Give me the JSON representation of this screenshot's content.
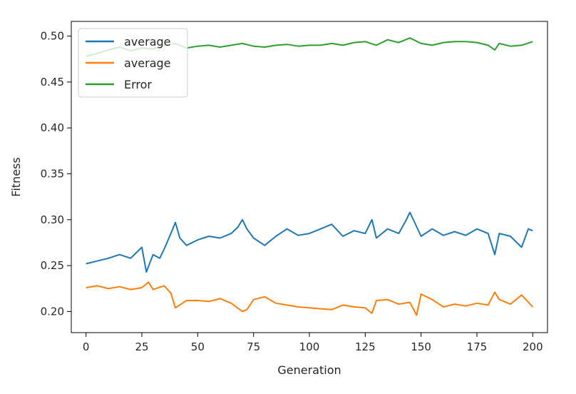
{
  "chart_data": {
    "type": "line",
    "title": "",
    "xlabel": "Generation",
    "ylabel": "Fitness",
    "xlim": [
      -6.6,
      206.6
    ],
    "ylim": [
      0.177,
      0.516
    ],
    "xticks": [
      0,
      25,
      50,
      75,
      100,
      125,
      150,
      175,
      200
    ],
    "xtick_labels": [
      "0",
      "25",
      "50",
      "75",
      "100",
      "125",
      "150",
      "175",
      "200"
    ],
    "yticks": [
      0.2,
      0.25,
      0.3,
      0.35,
      0.4,
      0.45,
      0.5
    ],
    "ytick_labels": [
      "0.20",
      "0.25",
      "0.30",
      "0.35",
      "0.40",
      "0.45",
      "0.50"
    ],
    "grid": false,
    "legend_position": "upper-left",
    "series": [
      {
        "name": "average",
        "color": "#1f77b4",
        "x": [
          0,
          5,
          10,
          15,
          20,
          25,
          27,
          30,
          33,
          35,
          38,
          40,
          42,
          45,
          50,
          55,
          60,
          65,
          68,
          70,
          72,
          75,
          80,
          85,
          90,
          95,
          100,
          105,
          110,
          115,
          120,
          125,
          128,
          130,
          135,
          140,
          143,
          145,
          150,
          155,
          160,
          165,
          170,
          175,
          180,
          183,
          185,
          190,
          195,
          198,
          200
        ],
        "y": [
          0.252,
          0.255,
          0.258,
          0.262,
          0.258,
          0.27,
          0.243,
          0.262,
          0.258,
          0.268,
          0.285,
          0.297,
          0.28,
          0.272,
          0.278,
          0.282,
          0.28,
          0.285,
          0.292,
          0.3,
          0.29,
          0.28,
          0.272,
          0.282,
          0.29,
          0.283,
          0.285,
          0.29,
          0.295,
          0.282,
          0.288,
          0.285,
          0.3,
          0.28,
          0.29,
          0.285,
          0.298,
          0.308,
          0.282,
          0.29,
          0.283,
          0.287,
          0.283,
          0.29,
          0.285,
          0.262,
          0.285,
          0.282,
          0.27,
          0.29,
          0.288
        ]
      },
      {
        "name": "average",
        "color": "#ff7f0e",
        "x": [
          0,
          5,
          10,
          15,
          20,
          25,
          28,
          30,
          35,
          38,
          40,
          45,
          50,
          55,
          60,
          65,
          70,
          72,
          75,
          80,
          85,
          90,
          95,
          100,
          105,
          110,
          115,
          120,
          125,
          128,
          130,
          135,
          140,
          145,
          148,
          150,
          155,
          160,
          165,
          170,
          175,
          180,
          183,
          185,
          190,
          195,
          200
        ],
        "y": [
          0.226,
          0.228,
          0.225,
          0.227,
          0.224,
          0.226,
          0.232,
          0.224,
          0.228,
          0.22,
          0.204,
          0.212,
          0.212,
          0.211,
          0.214,
          0.209,
          0.2,
          0.202,
          0.213,
          0.216,
          0.209,
          0.207,
          0.205,
          0.204,
          0.203,
          0.202,
          0.207,
          0.205,
          0.204,
          0.198,
          0.212,
          0.213,
          0.208,
          0.21,
          0.196,
          0.219,
          0.213,
          0.205,
          0.208,
          0.206,
          0.209,
          0.207,
          0.221,
          0.213,
          0.208,
          0.218,
          0.205
        ]
      },
      {
        "name": "Error",
        "color": "#2ca02c",
        "x": [
          0,
          5,
          10,
          15,
          20,
          25,
          30,
          35,
          40,
          45,
          50,
          55,
          60,
          65,
          70,
          75,
          80,
          85,
          90,
          95,
          100,
          105,
          110,
          115,
          120,
          125,
          130,
          135,
          140,
          145,
          150,
          155,
          160,
          165,
          170,
          175,
          180,
          183,
          185,
          190,
          195,
          200
        ],
        "y": [
          0.478,
          0.481,
          0.485,
          0.488,
          0.484,
          0.487,
          0.486,
          0.49,
          0.492,
          0.487,
          0.489,
          0.49,
          0.488,
          0.49,
          0.492,
          0.489,
          0.488,
          0.49,
          0.491,
          0.489,
          0.49,
          0.49,
          0.492,
          0.49,
          0.493,
          0.494,
          0.49,
          0.496,
          0.493,
          0.498,
          0.492,
          0.49,
          0.493,
          0.494,
          0.494,
          0.493,
          0.49,
          0.485,
          0.492,
          0.489,
          0.49,
          0.494
        ]
      }
    ]
  }
}
